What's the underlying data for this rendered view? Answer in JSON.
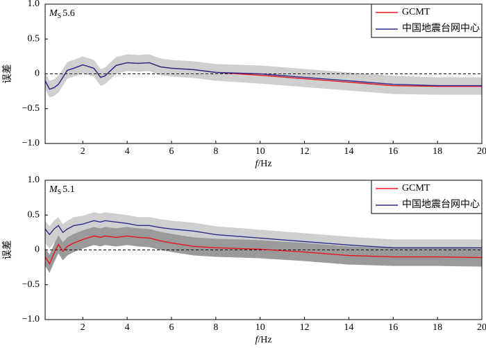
{
  "chart_data": [
    {
      "type": "line",
      "annotation": [
        "M",
        "S",
        "5.6"
      ],
      "xlabel": [
        "f",
        "/Hz"
      ],
      "ylabel": "误差",
      "xlim": [
        0.3,
        20
      ],
      "xticks": [
        2,
        4,
        6,
        8,
        10,
        12,
        14,
        16,
        18,
        20
      ],
      "ylim": [
        -1,
        1
      ],
      "yticks": [
        {
          "value": 1,
          "label": "1.0"
        },
        {
          "value": 0.5,
          "label": "0.5"
        },
        0,
        {
          "value": -0.5,
          "label": "−0.5"
        },
        {
          "value": -1,
          "label": "−1.0"
        }
      ],
      "zero_line": true,
      "legend": "upper right",
      "x": [
        0.3,
        0.5,
        0.7,
        0.9,
        1.1,
        1.3,
        1.6,
        2,
        2.5,
        2.8,
        3,
        3.5,
        4,
        4.5,
        5,
        5.5,
        6,
        7,
        8,
        10,
        12,
        14,
        16,
        18,
        20
      ],
      "bands": [
        {
          "color": "#cfcfcf",
          "upper": [
            0.02,
            -0.1,
            -0.08,
            -0.03,
            0.07,
            0.17,
            0.2,
            0.25,
            0.2,
            0.07,
            0.09,
            0.24,
            0.28,
            0.27,
            0.28,
            0.22,
            0.2,
            0.18,
            0.14,
            0.12,
            0.07,
            0.02,
            -0.03,
            -0.05,
            -0.05
          ],
          "lower": [
            -0.22,
            -0.34,
            -0.32,
            -0.27,
            -0.17,
            -0.07,
            -0.04,
            0.01,
            -0.04,
            -0.17,
            -0.15,
            0,
            0.04,
            0.03,
            0.04,
            -0.02,
            -0.04,
            -0.06,
            -0.1,
            -0.14,
            -0.19,
            -0.24,
            -0.29,
            -0.3,
            -0.3
          ]
        }
      ],
      "series": [
        {
          "name": "GCMT",
          "color": "#e8141c",
          "values": [
            -0.1,
            -0.22,
            -0.2,
            -0.15,
            -0.05,
            0.05,
            0.08,
            0.13,
            0.08,
            -0.05,
            -0.03,
            0.12,
            0.16,
            0.15,
            0.16,
            0.1,
            0.08,
            0.06,
            0.02,
            -0.02,
            -0.07,
            -0.12,
            -0.17,
            -0.18,
            -0.18
          ]
        },
        {
          "name": "中国地震台网中心",
          "color": "#2b2b8c",
          "values": [
            -0.1,
            -0.22,
            -0.2,
            -0.15,
            -0.05,
            0.05,
            0.08,
            0.13,
            0.08,
            -0.05,
            -0.03,
            0.12,
            0.16,
            0.15,
            0.16,
            0.1,
            0.08,
            0.06,
            0.02,
            0,
            -0.05,
            -0.1,
            -0.15,
            -0.17,
            -0.17
          ]
        }
      ]
    },
    {
      "type": "line",
      "annotation": [
        "M",
        "S",
        "5.1"
      ],
      "xlabel": [
        "f",
        "/Hz"
      ],
      "ylabel": "误差",
      "xlim": [
        0.3,
        20
      ],
      "xticks": [
        2,
        4,
        6,
        8,
        10,
        12,
        14,
        16,
        18,
        20
      ],
      "ylim": [
        -1,
        1
      ],
      "yticks": [
        {
          "value": 1,
          "label": "1.0"
        },
        {
          "value": 0.5,
          "label": "0.5"
        },
        0,
        {
          "value": -0.5,
          "label": "−0.5"
        },
        {
          "value": -1,
          "label": "−1.0"
        }
      ],
      "zero_line": true,
      "legend": "upper right",
      "x": [
        0.3,
        0.5,
        0.7,
        0.9,
        1.1,
        1.3,
        1.6,
        2,
        2.5,
        2.8,
        3,
        3.5,
        4,
        4.5,
        5,
        5.5,
        6,
        7,
        8,
        10,
        12,
        14,
        16,
        18,
        20
      ],
      "bands": [
        {
          "color": "#cfcfcf",
          "upper": [
            0.42,
            0.34,
            0.42,
            0.47,
            0.37,
            0.42,
            0.47,
            0.49,
            0.54,
            0.52,
            0.54,
            0.52,
            0.5,
            0.47,
            0.47,
            0.44,
            0.42,
            0.39,
            0.34,
            0.29,
            0.24,
            0.19,
            0.15,
            0.15,
            0.15
          ],
          "lower": [
            0.1,
            0.02,
            0.1,
            0.15,
            0.05,
            0.1,
            0.15,
            0.17,
            0.22,
            0.2,
            0.22,
            0.2,
            0.18,
            0.15,
            0.15,
            0.12,
            0.1,
            0.07,
            0.02,
            -0.03,
            -0.08,
            -0.13,
            -0.17,
            -0.17,
            -0.17
          ]
        },
        {
          "color": "#9a9a9a",
          "upper": [
            0.03,
            -0.07,
            0.08,
            0.21,
            0.11,
            0.18,
            0.23,
            0.28,
            0.33,
            0.31,
            0.33,
            0.31,
            0.33,
            0.31,
            0.3,
            0.26,
            0.23,
            0.18,
            0.16,
            0.14,
            0.1,
            0.05,
            0.03,
            0.03,
            0.02
          ],
          "lower": [
            -0.23,
            -0.33,
            -0.18,
            -0.05,
            -0.15,
            -0.08,
            -0.03,
            0.02,
            0.07,
            0.05,
            0.07,
            0.05,
            0.07,
            0.05,
            0.04,
            0,
            -0.03,
            -0.08,
            -0.1,
            -0.12,
            -0.16,
            -0.21,
            -0.23,
            -0.23,
            -0.24
          ]
        }
      ],
      "series": [
        {
          "name": "GCMT",
          "color": "#e8141c",
          "values": [
            -0.1,
            -0.2,
            -0.05,
            0.08,
            -0.02,
            0.05,
            0.1,
            0.15,
            0.2,
            0.18,
            0.2,
            0.18,
            0.2,
            0.18,
            0.17,
            0.13,
            0.1,
            0.05,
            0.03,
            0.01,
            -0.03,
            -0.08,
            -0.1,
            -0.1,
            -0.11
          ]
        },
        {
          "name": "中国地震台网中心",
          "color": "#2b2b8c",
          "values": [
            0.3,
            0.22,
            0.3,
            0.35,
            0.25,
            0.3,
            0.35,
            0.37,
            0.42,
            0.4,
            0.42,
            0.4,
            0.38,
            0.35,
            0.35,
            0.32,
            0.3,
            0.27,
            0.22,
            0.17,
            0.12,
            0.07,
            0.03,
            0.03,
            0.03
          ]
        }
      ]
    }
  ]
}
